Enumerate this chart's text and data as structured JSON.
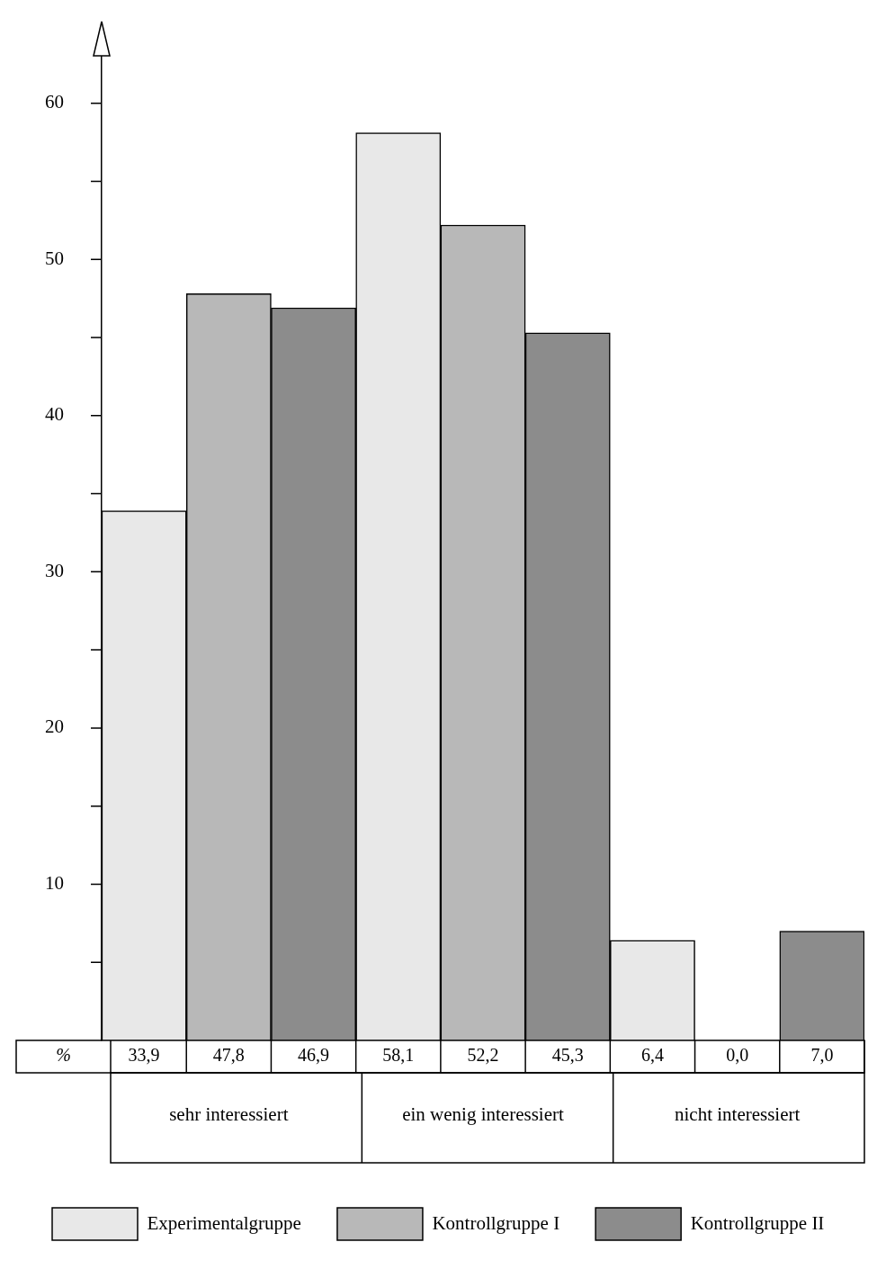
{
  "chart_data": {
    "type": "bar",
    "categories": [
      "sehr interessiert",
      "ein wenig interessiert",
      "nicht interessiert"
    ],
    "series": [
      {
        "name": "Experimentalgruppe",
        "color": "#e8e8e8",
        "values": [
          33.9,
          58.1,
          6.4
        ],
        "value_labels": [
          "33,9",
          "58,1",
          "6,4"
        ]
      },
      {
        "name": "Kontrollgruppe I",
        "color": "#b8b8b8",
        "values": [
          47.8,
          52.2,
          0.0
        ],
        "value_labels": [
          "47,8",
          "52,2",
          "0,0"
        ]
      },
      {
        "name": "Kontrollgruppe II",
        "color": "#8c8c8c",
        "values": [
          46.9,
          45.3,
          7.0
        ],
        "value_labels": [
          "46,9",
          "45,3",
          "7,0"
        ]
      }
    ],
    "annotations": [
      "%"
    ],
    "ylim": [
      0,
      63
    ],
    "yticks": [
      10,
      20,
      30,
      40,
      50,
      60
    ],
    "grid": false,
    "legend": "bottom"
  }
}
